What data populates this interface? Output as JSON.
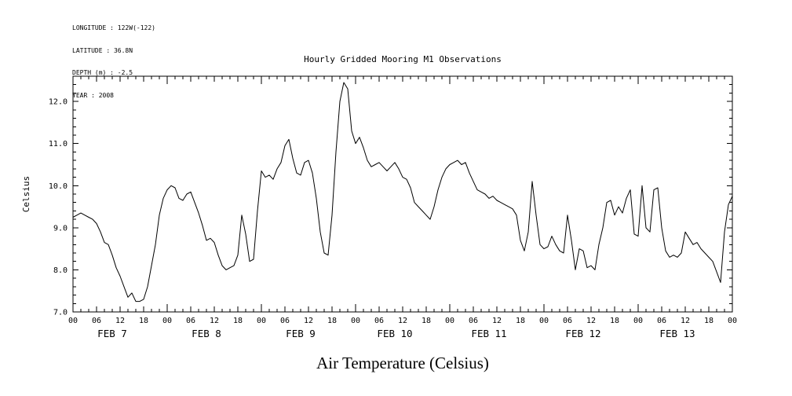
{
  "meta": {
    "longitude": "LONGITUDE : 122W(-122)",
    "latitude": "LATITUDE : 36.8N",
    "depth": "DEPTH (m) : -2.5",
    "year": "YEAR : 2008"
  },
  "title": "Hourly Gridded Mooring M1 Observations",
  "ylabel": "Celsius",
  "xlabel": "Air Temperature (Celsius)",
  "chart_data": {
    "type": "line",
    "title": "Hourly Gridded Mooring M1 Observations",
    "xlabel": "Air Temperature (Celsius)",
    "ylabel": "Celsius",
    "ylim": [
      7.0,
      12.6
    ],
    "y_ticks": [
      7.0,
      8.0,
      9.0,
      10.0,
      11.0,
      12.0
    ],
    "y_minor_step": 0.2,
    "x_hour_ticks": [
      "00",
      "06",
      "12",
      "18"
    ],
    "end_hour_label": "00",
    "x_minor_step_hours": 2,
    "day_labels": [
      "FEB 7",
      "FEB 8",
      "FEB 9",
      "FEB 10",
      "FEB 11",
      "FEB 12",
      "FEB 13"
    ],
    "grid": false,
    "legend": "none",
    "line_color": "#000000",
    "series": [
      {
        "name": "Air Temperature",
        "units": "Celsius",
        "step_hours": 1,
        "values": [
          9.25,
          9.3,
          9.35,
          9.3,
          9.25,
          9.2,
          9.1,
          8.9,
          8.65,
          8.6,
          8.35,
          8.05,
          7.85,
          7.6,
          7.35,
          7.45,
          7.25,
          7.25,
          7.3,
          7.6,
          8.1,
          8.6,
          9.3,
          9.7,
          9.9,
          10.0,
          9.95,
          9.7,
          9.65,
          9.8,
          9.85,
          9.6,
          9.35,
          9.05,
          8.7,
          8.75,
          8.65,
          8.35,
          8.1,
          8.0,
          8.05,
          8.1,
          8.35,
          9.3,
          8.85,
          8.2,
          8.25,
          9.4,
          10.35,
          10.2,
          10.25,
          10.15,
          10.4,
          10.55,
          10.95,
          11.1,
          10.65,
          10.3,
          10.25,
          10.55,
          10.6,
          10.3,
          9.7,
          8.9,
          8.4,
          8.35,
          9.3,
          10.8,
          12.0,
          12.45,
          12.3,
          11.3,
          11.0,
          11.15,
          10.9,
          10.6,
          10.45,
          10.5,
          10.55,
          10.45,
          10.35,
          10.45,
          10.55,
          10.4,
          10.2,
          10.15,
          9.95,
          9.6,
          9.5,
          9.4,
          9.3,
          9.2,
          9.5,
          9.9,
          10.2,
          10.4,
          10.5,
          10.55,
          10.6,
          10.5,
          10.55,
          10.3,
          10.1,
          9.9,
          9.85,
          9.8,
          9.7,
          9.75,
          9.65,
          9.6,
          9.55,
          9.5,
          9.45,
          9.3,
          8.7,
          8.45,
          8.9,
          10.1,
          9.3,
          8.6,
          8.5,
          8.55,
          8.8,
          8.6,
          8.45,
          8.4,
          9.3,
          8.7,
          8.0,
          8.5,
          8.45,
          8.05,
          8.1,
          8.0,
          8.6,
          9.0,
          9.6,
          9.65,
          9.3,
          9.5,
          9.35,
          9.7,
          9.9,
          8.85,
          8.8,
          10.0,
          9.0,
          8.9,
          9.9,
          9.95,
          9.0,
          8.45,
          8.3,
          8.35,
          8.3,
          8.4,
          8.9,
          8.75,
          8.6,
          8.65,
          8.5,
          8.4,
          8.3,
          8.2,
          7.95,
          7.7,
          8.9,
          9.55,
          9.75
        ]
      }
    ]
  }
}
